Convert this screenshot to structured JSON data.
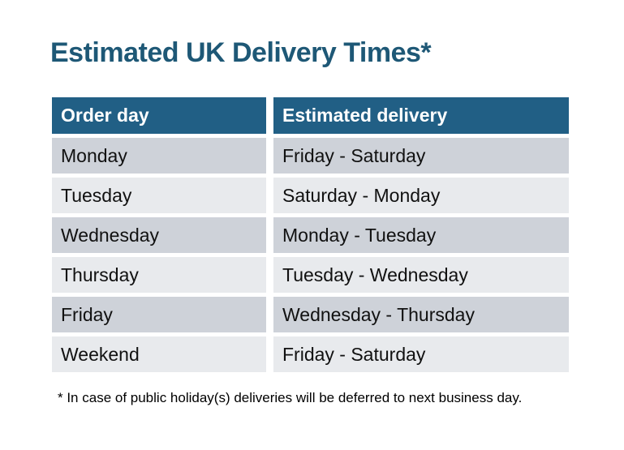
{
  "title": {
    "text": "Estimated UK Delivery Times*"
  },
  "colors": {
    "page_bg": "#ffffff",
    "title_text": "#1e5876",
    "header_bg": "#215f85",
    "header_text": "#ffffff",
    "row_dark": "#ced2d9",
    "row_light": "#e8eaed",
    "body_text": "#111111",
    "footnote_text": "#000000"
  },
  "table": {
    "header": {
      "columns": [
        "Order day",
        "Estimated delivery"
      ]
    },
    "rows": [
      {
        "order_day": "Monday",
        "estimated_delivery": "Friday - Saturday"
      },
      {
        "order_day": "Tuesday",
        "estimated_delivery": "Saturday - Monday"
      },
      {
        "order_day": "Wednesday",
        "estimated_delivery": "Monday - Tuesday"
      },
      {
        "order_day": "Thursday",
        "estimated_delivery": "Tuesday - Wednesday"
      },
      {
        "order_day": "Friday",
        "estimated_delivery": "Wednesday - Thursday"
      },
      {
        "order_day": "Weekend",
        "estimated_delivery": "Friday - Saturday"
      }
    ]
  },
  "footnote": {
    "text": "* In case of public holiday(s) deliveries will be deferred to next business day."
  }
}
